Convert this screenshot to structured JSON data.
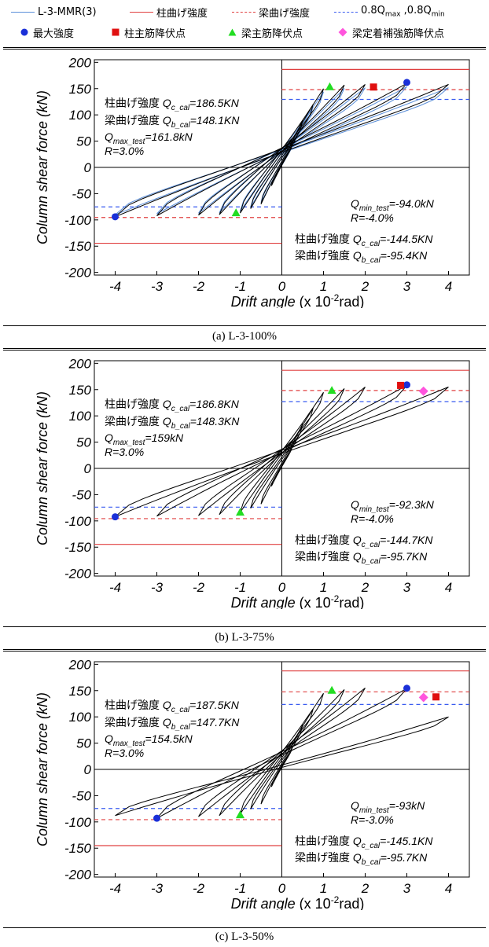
{
  "legend": {
    "items": [
      {
        "key": "mmr",
        "label": "L-3-MMR(3)",
        "color": "#5b8fd9",
        "style": "solid"
      },
      {
        "key": "col",
        "label": "柱曲げ強度",
        "color": "#e04040",
        "style": "solid"
      },
      {
        "key": "beam",
        "label": "梁曲げ強度",
        "color": "#e04040",
        "style": "dashed"
      },
      {
        "key": "q08",
        "label_main": "0.8Q",
        "sub1": "max",
        "mid": " ,0.8Q",
        "sub2": "min",
        "color": "#3a5cf0",
        "style": "dashed"
      }
    ],
    "markers": [
      {
        "key": "max",
        "label": "最大強度",
        "color": "#1a2fd8",
        "shape": "circle"
      },
      {
        "key": "col_yield",
        "label": "柱主筋降伏点",
        "color": "#e01010",
        "shape": "square"
      },
      {
        "key": "beam_yield",
        "label": "梁主筋降伏点",
        "color": "#22dd22",
        "shape": "triangle"
      },
      {
        "key": "anchor_yield",
        "label": "梁定着補強筋降伏点",
        "color": "#ff55dd",
        "shape": "diamond"
      }
    ]
  },
  "axes": {
    "ylabel": "Column shear force (kN)",
    "xlabel_main": "Drift angle",
    "xlabel_pre": " (x 10",
    "xlabel_sup": "-2",
    "xlabel_post": "rad)",
    "xlim": [
      -4.5,
      4.5
    ],
    "ylim": [
      -205,
      205
    ],
    "xticks": [
      -4,
      -3,
      -2,
      -1,
      0,
      1,
      2,
      3,
      4
    ],
    "yticks": [
      200,
      150,
      100,
      50,
      0,
      -50,
      -100,
      -150,
      -200
    ]
  },
  "chart_data": [
    {
      "type": "line",
      "caption": "(a) L-3-100%",
      "series_names": [
        "L-3-100%",
        "L-3-MMR(3)"
      ],
      "amplitudes": [
        0.25,
        0.5,
        0.75,
        1.0,
        1.5,
        2.0,
        3.0,
        4.0
      ],
      "neg_amplitudes": [
        -0.25,
        -0.5,
        -0.75,
        -1.0,
        -1.5,
        -2.0,
        -3.0,
        -4.0
      ],
      "envelope_pos": {
        "x": [
          0,
          0.5,
          1.0,
          1.5,
          2.0,
          3.0,
          4.0
        ],
        "y": [
          0,
          90,
          150,
          157,
          158,
          160,
          158
        ]
      },
      "envelope_neg": {
        "x": [
          0,
          -0.5,
          -1.0,
          -1.5,
          -2.0,
          -3.0,
          -4.0
        ],
        "y": [
          0,
          -70,
          -87,
          -90,
          -91,
          -92,
          -94
        ]
      },
      "has_mmr": true,
      "col_strength_pos": 186.5,
      "col_strength_neg": -144.5,
      "beam_strength_pos": 148.1,
      "beam_strength_neg": -95.4,
      "q08_pos": 129.4,
      "q08_neg": -75.2,
      "markers": [
        {
          "type": "max",
          "x": 3.0,
          "y": 161.8
        },
        {
          "type": "max",
          "x": -4.0,
          "y": -94.0
        },
        {
          "type": "col_yield",
          "x": 2.2,
          "y": 153
        },
        {
          "type": "beam_yield",
          "x": 1.15,
          "y": 153
        },
        {
          "type": "beam_yield",
          "x": -1.1,
          "y": -87
        }
      ],
      "ann_upper": {
        "l1": "柱曲げ強度",
        "s1": "c_cal",
        "v1": "=186.5KN",
        "l2": "梁曲げ強度",
        "s2": "b_cal",
        "v2": "=148.1KN",
        "s3": "max_test",
        "v3": "=161.8kN",
        "r": "R=3.0%"
      },
      "ann_lower": {
        "s1": "min_test",
        "v1": "=-94.0kN",
        "r": "R=-4.0%",
        "l2": "柱曲げ強度",
        "s2": "c_cal",
        "v2": "=-144.5KN",
        "l3": "梁曲げ強度",
        "s3": "b_cal",
        "v3": "=-95.4KN"
      }
    },
    {
      "type": "line",
      "caption": "(b) L-3-75%",
      "series_names": [
        "L-3-75%"
      ],
      "amplitudes": [
        0.25,
        0.5,
        0.75,
        1.0,
        1.5,
        2.0,
        3.0,
        4.0
      ],
      "neg_amplitudes": [
        -0.25,
        -0.5,
        -0.75,
        -1.0,
        -1.5,
        -2.0,
        -3.0,
        -4.0
      ],
      "envelope_pos": {
        "x": [
          0,
          0.5,
          1.0,
          1.5,
          2.0,
          3.0,
          4.0
        ],
        "y": [
          0,
          85,
          145,
          152,
          155,
          158,
          155
        ]
      },
      "envelope_neg": {
        "x": [
          0,
          -0.5,
          -1.0,
          -1.5,
          -2.0,
          -3.0,
          -4.0
        ],
        "y": [
          0,
          -68,
          -84,
          -88,
          -90,
          -91,
          -92
        ]
      },
      "has_mmr": false,
      "col_strength_pos": 186.8,
      "col_strength_neg": -144.7,
      "beam_strength_pos": 148.3,
      "beam_strength_neg": -95.7,
      "q08_pos": 127.2,
      "q08_neg": -73.8,
      "markers": [
        {
          "type": "max",
          "x": 3.0,
          "y": 159
        },
        {
          "type": "max",
          "x": -4.0,
          "y": -92.3
        },
        {
          "type": "col_yield",
          "x": 2.85,
          "y": 158
        },
        {
          "type": "anchor_yield",
          "x": 3.4,
          "y": 147
        },
        {
          "type": "beam_yield",
          "x": 1.2,
          "y": 148
        },
        {
          "type": "beam_yield",
          "x": -1.0,
          "y": -84
        }
      ],
      "ann_upper": {
        "l1": "柱曲げ強度",
        "s1": "c_cal",
        "v1": "=186.8KN",
        "l2": "梁曲げ強度",
        "s2": "b_cal",
        "v2": "=148.3KN",
        "s3": "max_test",
        "v3": "=159kN",
        "r": "R=3.0%"
      },
      "ann_lower": {
        "s1": "min_test",
        "v1": "=-92.3kN",
        "r": "R=-4.0%",
        "l2": "柱曲げ強度",
        "s2": "c_cal",
        "v2": "=-144.7KN",
        "l3": "梁曲げ強度",
        "s3": "b_cal",
        "v3": "=-95.7KN"
      }
    },
    {
      "type": "line",
      "caption": "(c) L-3-50%",
      "series_names": [
        "L-3-50%"
      ],
      "amplitudes": [
        0.25,
        0.5,
        0.75,
        1.0,
        1.5,
        2.0,
        3.0,
        4.0
      ],
      "neg_amplitudes": [
        -0.25,
        -0.5,
        -0.75,
        -1.0,
        -1.5,
        -2.0,
        -3.0,
        -4.0
      ],
      "envelope_pos": {
        "x": [
          0,
          0.5,
          1.0,
          1.5,
          2.0,
          3.0,
          4.0
        ],
        "y": [
          0,
          85,
          145,
          152,
          155,
          154,
          100
        ]
      },
      "envelope_neg": {
        "x": [
          0,
          -0.5,
          -1.0,
          -1.5,
          -2.0,
          -3.0,
          -4.0
        ],
        "y": [
          0,
          -66,
          -85,
          -88,
          -90,
          -93,
          -88
        ]
      },
      "has_mmr": false,
      "col_strength_pos": 187.5,
      "col_strength_neg": -145.1,
      "beam_strength_pos": 147.7,
      "beam_strength_neg": -95.7,
      "q08_pos": 123.6,
      "q08_neg": -74.4,
      "markers": [
        {
          "type": "max",
          "x": 3.0,
          "y": 154.5
        },
        {
          "type": "max",
          "x": -3.0,
          "y": -93
        },
        {
          "type": "col_yield",
          "x": 3.7,
          "y": 138
        },
        {
          "type": "anchor_yield",
          "x": 3.4,
          "y": 137
        },
        {
          "type": "beam_yield",
          "x": 1.2,
          "y": 150
        },
        {
          "type": "beam_yield",
          "x": -1.0,
          "y": -87
        }
      ],
      "ann_upper": {
        "l1": "柱曲げ強度",
        "s1": "c_cal",
        "v1": "=187.5KN",
        "l2": "梁曲げ強度",
        "s2": "b_cal",
        "v2": "=147.7KN",
        "s3": "max_test",
        "v3": "=154.5kN",
        "r": "R=3.0%"
      },
      "ann_lower": {
        "s1": "min_test",
        "v1": "=-93kN",
        "r": "R=-3.0%",
        "l2": "柱曲げ強度",
        "s2": "c_cal",
        "v2": "=-145.1KN",
        "l3": "梁曲げ強度",
        "s3": "b_cal",
        "v3": "=-95.7KN"
      }
    }
  ]
}
